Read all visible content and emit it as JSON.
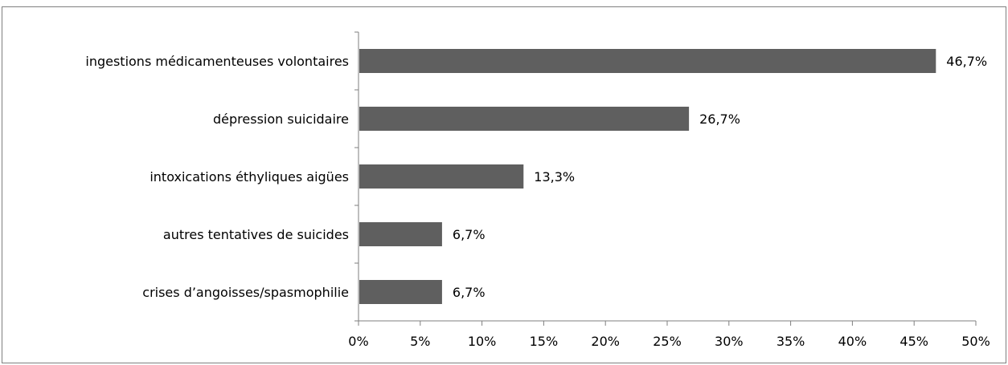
{
  "chart_data": {
    "type": "bar",
    "orientation": "horizontal",
    "categories": [
      "ingestions médicamenteuses volontaires",
      "dépression suicidaire",
      "intoxications éthyliques aigües",
      "autres tentatives de suicides",
      "crises d’angoisses/spasmophilie"
    ],
    "values": [
      46.7,
      26.7,
      13.3,
      6.7,
      6.7
    ],
    "data_labels": [
      "46,7%",
      "26,7%",
      "13,3%",
      "6,7%",
      "6,7%"
    ],
    "xlim": [
      0,
      50
    ],
    "xticks": [
      0,
      5,
      10,
      15,
      20,
      25,
      30,
      35,
      40,
      45,
      50
    ],
    "xtick_labels": [
      "0%",
      "5%",
      "10%",
      "15%",
      "20%",
      "25%",
      "30%",
      "35%",
      "40%",
      "45%",
      "50%"
    ],
    "bar_color": "#5f5f5f",
    "grid": false,
    "legend": "none",
    "title": "",
    "xlabel": "",
    "ylabel": ""
  }
}
